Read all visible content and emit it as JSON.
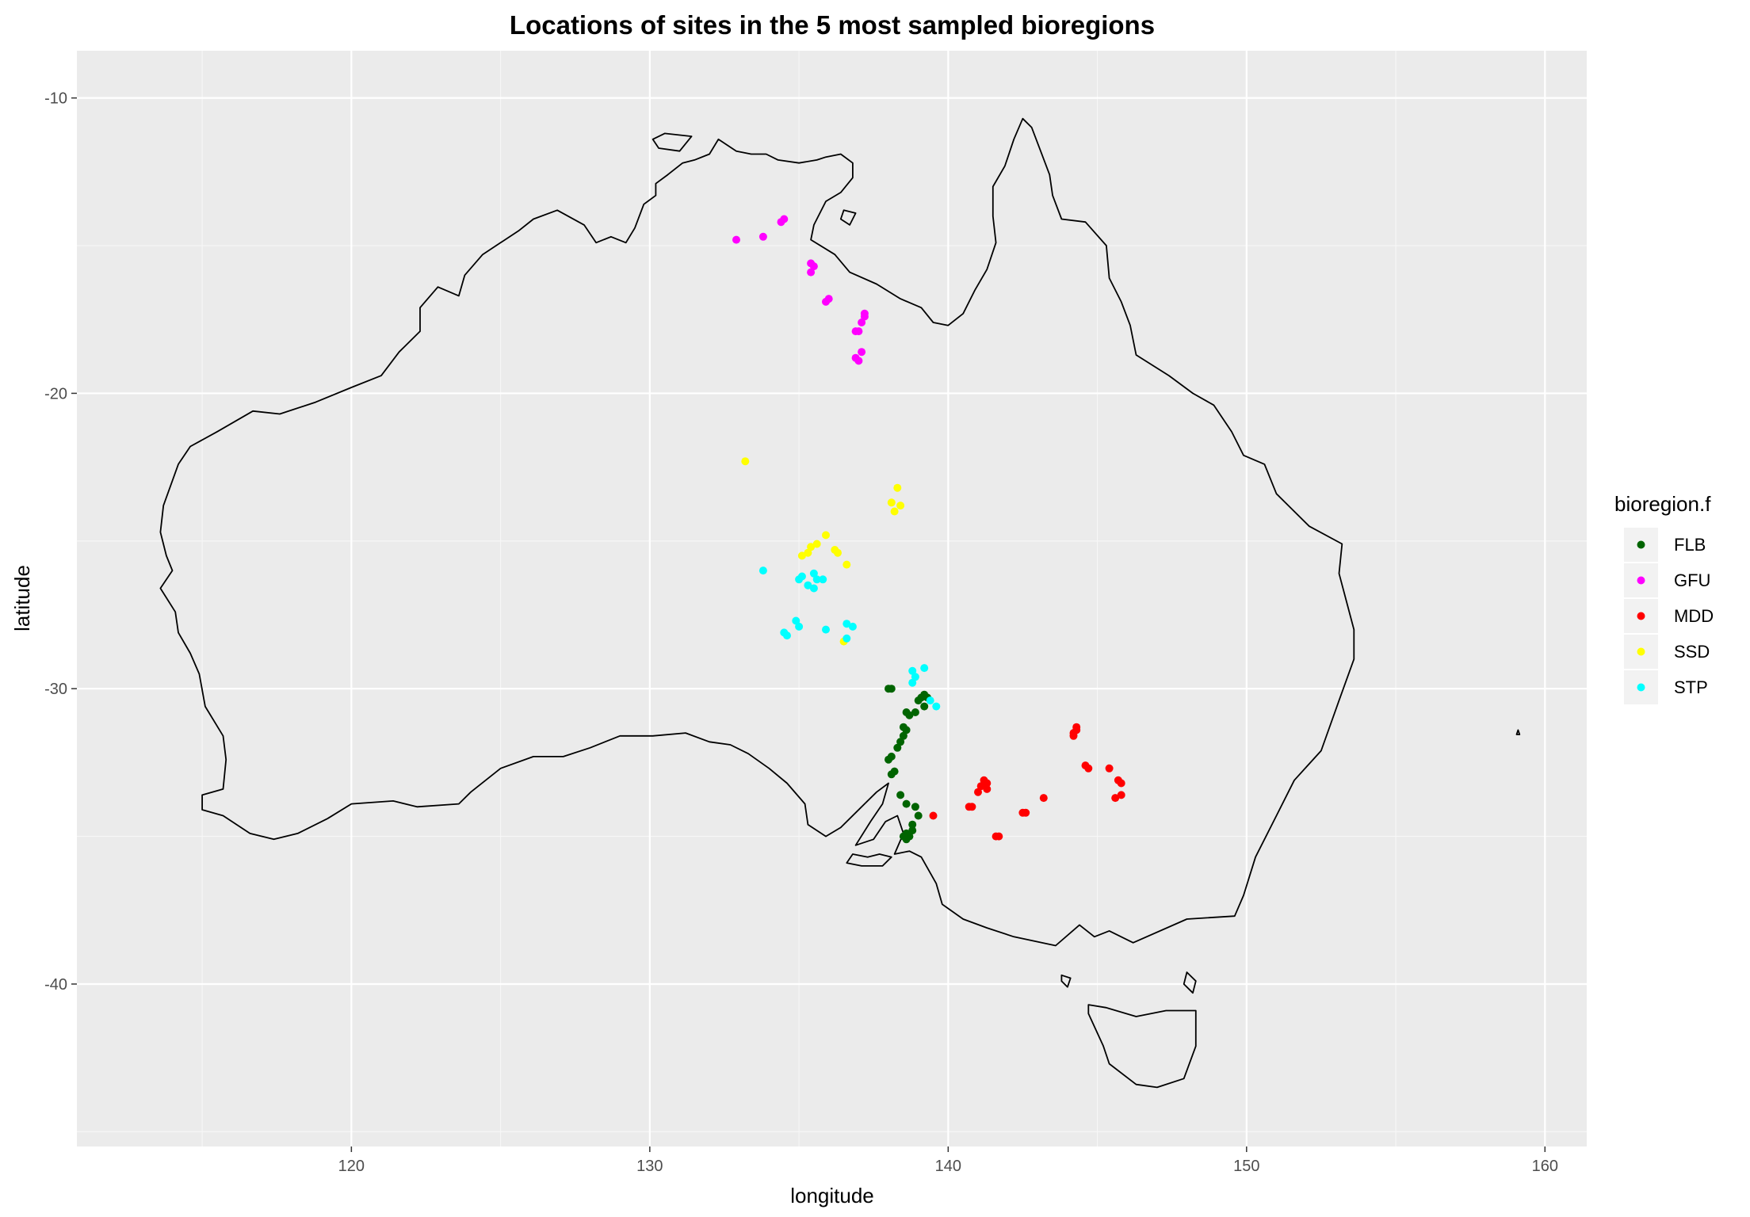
{
  "chart_data": {
    "type": "scatter",
    "title": "Locations of sites in the 5 most sampled bioregions",
    "xlabel": "longitude",
    "ylabel": "latitude",
    "xlim": [
      110.8,
      161.4
    ],
    "ylim": [
      -45.5,
      -8.4
    ],
    "x_ticks": [
      120,
      130,
      140,
      150,
      160
    ],
    "y_ticks": [
      -10,
      -20,
      -30,
      -40
    ],
    "grid": true,
    "legend": {
      "title": "bioregion.f",
      "position": "right"
    },
    "background": "#ebebeb",
    "outline_label": "coastline (map_data world)",
    "series": [
      {
        "name": "FLB",
        "color": "#006400",
        "points": [
          [
            138.0,
            -30.0
          ],
          [
            138.1,
            -30.0
          ],
          [
            139.1,
            -30.3
          ],
          [
            139.2,
            -30.2
          ],
          [
            139.3,
            -30.3
          ],
          [
            139.0,
            -30.4
          ],
          [
            139.2,
            -30.6
          ],
          [
            138.9,
            -30.8
          ],
          [
            138.6,
            -30.8
          ],
          [
            138.7,
            -30.9
          ],
          [
            138.5,
            -31.3
          ],
          [
            138.6,
            -31.4
          ],
          [
            138.5,
            -31.6
          ],
          [
            138.4,
            -31.8
          ],
          [
            138.3,
            -32.0
          ],
          [
            138.1,
            -32.3
          ],
          [
            138.0,
            -32.4
          ],
          [
            138.2,
            -32.8
          ],
          [
            138.1,
            -32.9
          ],
          [
            138.4,
            -33.6
          ],
          [
            138.6,
            -33.9
          ],
          [
            138.9,
            -34.0
          ],
          [
            139.0,
            -34.3
          ],
          [
            138.8,
            -34.6
          ],
          [
            138.8,
            -34.8
          ],
          [
            138.6,
            -34.9
          ],
          [
            138.7,
            -35.0
          ],
          [
            138.5,
            -35.0
          ],
          [
            138.6,
            -35.1
          ]
        ]
      },
      {
        "name": "GFU",
        "color": "#ff00ff",
        "points": [
          [
            132.9,
            -14.8
          ],
          [
            133.8,
            -14.7
          ],
          [
            134.4,
            -14.2
          ],
          [
            134.5,
            -14.1
          ],
          [
            135.4,
            -15.6
          ],
          [
            135.4,
            -15.9
          ],
          [
            135.5,
            -15.7
          ],
          [
            135.9,
            -16.9
          ],
          [
            136.0,
            -16.8
          ],
          [
            137.2,
            -17.3
          ],
          [
            137.2,
            -17.4
          ],
          [
            137.1,
            -17.6
          ],
          [
            136.9,
            -17.9
          ],
          [
            137.0,
            -17.9
          ],
          [
            137.1,
            -18.6
          ],
          [
            136.9,
            -18.8
          ],
          [
            137.0,
            -18.9
          ]
        ]
      },
      {
        "name": "MDD",
        "color": "#ff0000",
        "points": [
          [
            144.3,
            -31.3
          ],
          [
            144.3,
            -31.4
          ],
          [
            144.2,
            -31.5
          ],
          [
            144.2,
            -31.6
          ],
          [
            144.6,
            -32.6
          ],
          [
            144.7,
            -32.7
          ],
          [
            145.4,
            -32.7
          ],
          [
            145.7,
            -33.1
          ],
          [
            145.8,
            -33.2
          ],
          [
            145.8,
            -33.6
          ],
          [
            145.6,
            -33.7
          ],
          [
            143.2,
            -33.7
          ],
          [
            141.2,
            -33.1
          ],
          [
            141.3,
            -33.2
          ],
          [
            141.1,
            -33.3
          ],
          [
            141.3,
            -33.4
          ],
          [
            141.0,
            -33.5
          ],
          [
            140.8,
            -34.0
          ],
          [
            140.7,
            -34.0
          ],
          [
            142.5,
            -34.2
          ],
          [
            142.6,
            -34.2
          ],
          [
            139.5,
            -34.3
          ],
          [
            141.6,
            -35.0
          ],
          [
            141.7,
            -35.0
          ]
        ]
      },
      {
        "name": "SSD",
        "color": "#ffff00",
        "points": [
          [
            133.2,
            -22.3
          ],
          [
            138.3,
            -23.2
          ],
          [
            138.1,
            -23.7
          ],
          [
            138.4,
            -23.8
          ],
          [
            138.2,
            -24.0
          ],
          [
            135.9,
            -24.8
          ],
          [
            135.6,
            -25.1
          ],
          [
            135.4,
            -25.2
          ],
          [
            135.3,
            -25.4
          ],
          [
            135.1,
            -25.5
          ],
          [
            136.2,
            -25.3
          ],
          [
            136.3,
            -25.4
          ],
          [
            136.6,
            -25.8
          ],
          [
            136.5,
            -28.4
          ]
        ]
      },
      {
        "name": "STP",
        "color": "#00ffff",
        "points": [
          [
            133.8,
            -26.0
          ],
          [
            135.0,
            -26.3
          ],
          [
            135.1,
            -26.2
          ],
          [
            135.5,
            -26.1
          ],
          [
            135.6,
            -26.3
          ],
          [
            135.8,
            -26.3
          ],
          [
            135.3,
            -26.5
          ],
          [
            135.5,
            -26.6
          ],
          [
            134.9,
            -27.7
          ],
          [
            135.0,
            -27.9
          ],
          [
            136.6,
            -27.8
          ],
          [
            136.8,
            -27.9
          ],
          [
            134.5,
            -28.1
          ],
          [
            134.6,
            -28.2
          ],
          [
            135.9,
            -28.0
          ],
          [
            136.6,
            -28.3
          ],
          [
            138.8,
            -29.4
          ],
          [
            138.9,
            -29.6
          ],
          [
            139.2,
            -29.3
          ],
          [
            138.8,
            -29.8
          ],
          [
            139.4,
            -30.4
          ],
          [
            139.6,
            -30.6
          ]
        ]
      }
    ],
    "outlines": [
      [
        [
          113.6,
          -26.6
        ],
        [
          114.0,
          -26.0
        ],
        [
          113.8,
          -25.5
        ],
        [
          113.6,
          -24.7
        ],
        [
          113.7,
          -23.8
        ],
        [
          114.2,
          -22.4
        ],
        [
          114.6,
          -21.8
        ],
        [
          115.5,
          -21.3
        ],
        [
          116.7,
          -20.6
        ],
        [
          117.6,
          -20.7
        ],
        [
          118.8,
          -20.3
        ],
        [
          120.0,
          -19.8
        ],
        [
          121.0,
          -19.4
        ],
        [
          121.6,
          -18.6
        ],
        [
          122.3,
          -17.9
        ],
        [
          122.3,
          -17.1
        ],
        [
          122.9,
          -16.4
        ],
        [
          123.6,
          -16.7
        ],
        [
          123.8,
          -16.0
        ],
        [
          124.4,
          -15.3
        ],
        [
          125.0,
          -14.9
        ],
        [
          125.6,
          -14.5
        ],
        [
          126.1,
          -14.1
        ],
        [
          126.9,
          -13.8
        ],
        [
          127.8,
          -14.3
        ],
        [
          128.2,
          -14.9
        ],
        [
          128.7,
          -14.7
        ],
        [
          129.2,
          -14.9
        ],
        [
          129.5,
          -14.4
        ],
        [
          129.8,
          -13.6
        ],
        [
          130.2,
          -13.3
        ],
        [
          130.2,
          -12.9
        ],
        [
          130.6,
          -12.6
        ],
        [
          131.1,
          -12.2
        ],
        [
          131.5,
          -12.1
        ],
        [
          132.0,
          -11.9
        ],
        [
          132.3,
          -11.4
        ],
        [
          132.6,
          -11.6
        ],
        [
          132.9,
          -11.8
        ],
        [
          133.4,
          -11.9
        ],
        [
          133.9,
          -11.9
        ],
        [
          134.3,
          -12.1
        ],
        [
          135.0,
          -12.2
        ],
        [
          135.6,
          -12.1
        ],
        [
          135.9,
          -12.0
        ],
        [
          136.4,
          -11.9
        ],
        [
          136.8,
          -12.2
        ],
        [
          136.8,
          -12.7
        ],
        [
          136.4,
          -13.2
        ],
        [
          135.9,
          -13.5
        ],
        [
          135.5,
          -14.3
        ],
        [
          135.4,
          -14.8
        ],
        [
          136.2,
          -15.3
        ],
        [
          136.7,
          -15.9
        ],
        [
          137.6,
          -16.3
        ],
        [
          138.4,
          -16.8
        ],
        [
          139.1,
          -17.1
        ],
        [
          139.5,
          -17.6
        ],
        [
          140.0,
          -17.7
        ],
        [
          140.5,
          -17.3
        ],
        [
          140.9,
          -16.5
        ],
        [
          141.3,
          -15.8
        ],
        [
          141.6,
          -14.9
        ],
        [
          141.5,
          -14.0
        ],
        [
          141.5,
          -13.0
        ],
        [
          141.9,
          -12.3
        ],
        [
          142.2,
          -11.4
        ],
        [
          142.5,
          -10.7
        ],
        [
          142.8,
          -11.0
        ],
        [
          143.1,
          -11.8
        ],
        [
          143.4,
          -12.6
        ],
        [
          143.5,
          -13.3
        ],
        [
          143.8,
          -14.1
        ],
        [
          144.6,
          -14.2
        ],
        [
          145.3,
          -15.0
        ],
        [
          145.4,
          -16.1
        ],
        [
          145.8,
          -16.9
        ],
        [
          146.1,
          -17.7
        ],
        [
          146.3,
          -18.7
        ],
        [
          147.4,
          -19.4
        ],
        [
          148.2,
          -20.0
        ],
        [
          148.9,
          -20.4
        ],
        [
          149.5,
          -21.3
        ],
        [
          149.9,
          -22.1
        ],
        [
          150.6,
          -22.4
        ],
        [
          151.0,
          -23.4
        ],
        [
          152.1,
          -24.5
        ],
        [
          153.2,
          -25.1
        ],
        [
          153.1,
          -26.1
        ],
        [
          153.6,
          -28.0
        ],
        [
          153.6,
          -29.0
        ],
        [
          153.1,
          -30.4
        ],
        [
          152.5,
          -32.1
        ],
        [
          151.6,
          -33.1
        ],
        [
          151.0,
          -34.3
        ],
        [
          150.3,
          -35.7
        ],
        [
          149.9,
          -37.0
        ],
        [
          149.6,
          -37.7
        ],
        [
          148.0,
          -37.8
        ],
        [
          146.2,
          -38.6
        ],
        [
          145.4,
          -38.2
        ],
        [
          144.9,
          -38.4
        ],
        [
          144.4,
          -38.0
        ],
        [
          143.6,
          -38.7
        ],
        [
          142.2,
          -38.4
        ],
        [
          141.3,
          -38.1
        ],
        [
          140.5,
          -37.8
        ],
        [
          139.8,
          -37.3
        ],
        [
          139.6,
          -36.6
        ],
        [
          139.1,
          -35.7
        ],
        [
          138.7,
          -35.5
        ],
        [
          138.2,
          -35.6
        ],
        [
          138.5,
          -34.9
        ],
        [
          138.3,
          -34.3
        ],
        [
          137.9,
          -34.5
        ],
        [
          137.5,
          -35.1
        ],
        [
          136.9,
          -35.3
        ],
        [
          137.4,
          -34.5
        ],
        [
          137.8,
          -33.9
        ],
        [
          138.0,
          -33.2
        ],
        [
          137.6,
          -33.5
        ],
        [
          137.1,
          -34.0
        ],
        [
          136.4,
          -34.7
        ],
        [
          135.9,
          -35.0
        ],
        [
          135.3,
          -34.6
        ],
        [
          135.2,
          -33.9
        ],
        [
          134.6,
          -33.2
        ],
        [
          134.0,
          -32.7
        ],
        [
          133.3,
          -32.2
        ],
        [
          132.7,
          -31.9
        ],
        [
          132.0,
          -31.8
        ],
        [
          131.2,
          -31.5
        ],
        [
          130.1,
          -31.6
        ],
        [
          129.0,
          -31.6
        ],
        [
          128.0,
          -32.0
        ],
        [
          127.1,
          -32.3
        ],
        [
          126.1,
          -32.3
        ],
        [
          125.0,
          -32.7
        ],
        [
          124.0,
          -33.5
        ],
        [
          123.6,
          -33.9
        ],
        [
          122.2,
          -34.0
        ],
        [
          121.4,
          -33.8
        ],
        [
          120.0,
          -33.9
        ],
        [
          119.2,
          -34.4
        ],
        [
          118.2,
          -34.9
        ],
        [
          117.4,
          -35.1
        ],
        [
          116.6,
          -34.9
        ],
        [
          115.7,
          -34.3
        ],
        [
          115.0,
          -34.1
        ],
        [
          115.0,
          -33.6
        ],
        [
          115.7,
          -33.4
        ],
        [
          115.8,
          -32.4
        ],
        [
          115.7,
          -31.6
        ],
        [
          115.1,
          -30.6
        ],
        [
          114.9,
          -29.5
        ],
        [
          114.6,
          -28.8
        ],
        [
          114.2,
          -28.1
        ],
        [
          114.1,
          -27.4
        ],
        [
          113.6,
          -26.6
        ]
      ],
      [
        [
          137.7,
          -35.6
        ],
        [
          138.1,
          -35.7
        ],
        [
          137.8,
          -36.0
        ],
        [
          137.1,
          -36.0
        ],
        [
          136.6,
          -35.9
        ],
        [
          136.8,
          -35.6
        ],
        [
          137.3,
          -35.7
        ],
        [
          137.7,
          -35.6
        ]
      ],
      [
        [
          144.7,
          -40.7
        ],
        [
          145.3,
          -40.8
        ],
        [
          146.3,
          -41.1
        ],
        [
          147.3,
          -40.9
        ],
        [
          148.3,
          -40.9
        ],
        [
          148.3,
          -42.1
        ],
        [
          147.9,
          -43.2
        ],
        [
          147.0,
          -43.5
        ],
        [
          146.3,
          -43.4
        ],
        [
          145.4,
          -42.7
        ],
        [
          145.2,
          -42.1
        ],
        [
          144.7,
          -41.0
        ],
        [
          144.7,
          -40.7
        ]
      ],
      [
        [
          130.1,
          -11.4
        ],
        [
          130.5,
          -11.2
        ],
        [
          131.4,
          -11.3
        ],
        [
          131.0,
          -11.8
        ],
        [
          130.3,
          -11.7
        ],
        [
          130.1,
          -11.4
        ]
      ],
      [
        [
          136.5,
          -13.8
        ],
        [
          136.9,
          -13.9
        ],
        [
          136.7,
          -14.3
        ],
        [
          136.4,
          -14.1
        ],
        [
          136.5,
          -13.8
        ]
      ],
      [
        [
          143.8,
          -39.7
        ],
        [
          144.1,
          -39.8
        ],
        [
          144.0,
          -40.1
        ],
        [
          143.8,
          -39.9
        ],
        [
          143.8,
          -39.7
        ]
      ],
      [
        [
          148.0,
          -39.6
        ],
        [
          148.3,
          -39.9
        ],
        [
          148.2,
          -40.3
        ],
        [
          147.9,
          -40.0
        ],
        [
          148.0,
          -39.6
        ]
      ],
      [
        [
          159.1,
          -31.4
        ],
        [
          159.15,
          -31.55
        ],
        [
          159.05,
          -31.55
        ],
        [
          159.1,
          -31.4
        ]
      ]
    ]
  }
}
